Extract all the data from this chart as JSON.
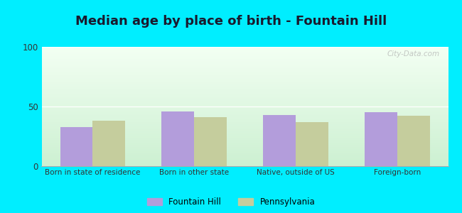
{
  "title": "Median age by place of birth - Fountain Hill",
  "categories": [
    "Born in state of residence",
    "Born in other state",
    "Native, outside of US",
    "Foreign-born"
  ],
  "fountain_hill": [
    33,
    46,
    43,
    45
  ],
  "pennsylvania": [
    38,
    41,
    37,
    42
  ],
  "bar_color_fh": "#b39ddb",
  "bar_color_pa": "#c5cd9d",
  "legend_labels": [
    "Fountain Hill",
    "Pennsylvania"
  ],
  "ylim": [
    0,
    100
  ],
  "yticks": [
    0,
    50,
    100
  ],
  "outer_bg": "#00eeff",
  "title_fontsize": 13,
  "bar_width": 0.32,
  "watermark": "City-Data.com"
}
